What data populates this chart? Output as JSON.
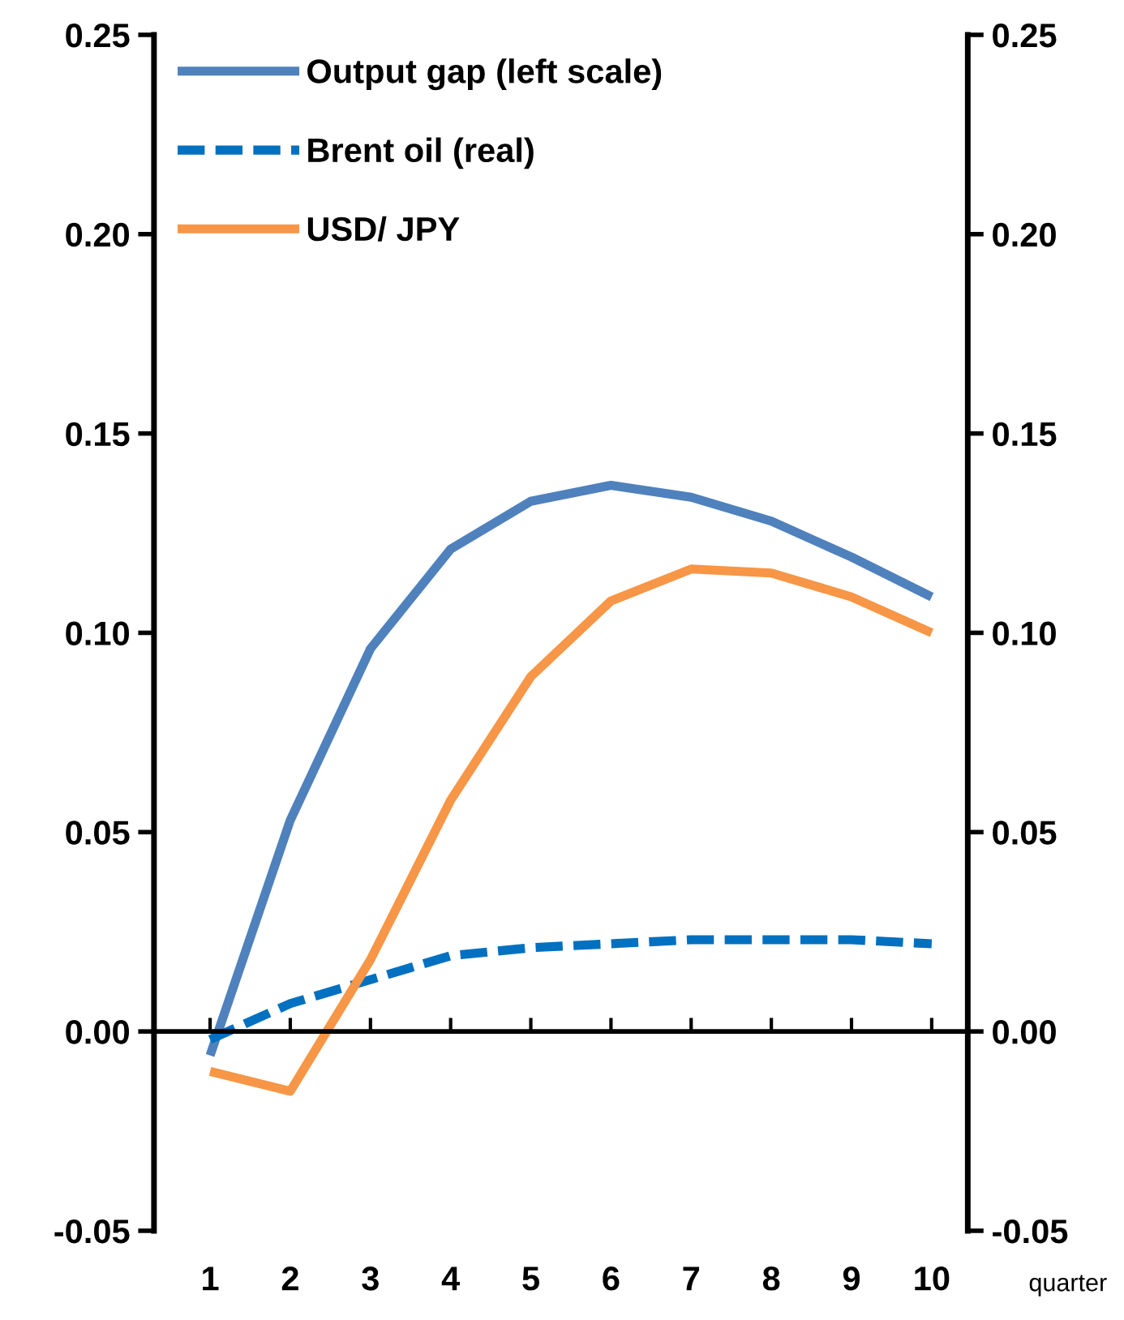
{
  "chart_data": {
    "type": "line",
    "xlabel": "quarter",
    "categories": [
      "1",
      "2",
      "3",
      "4",
      "5",
      "6",
      "7",
      "8",
      "9",
      "10"
    ],
    "series": [
      {
        "name": "Output gap (left scale)",
        "color": "#4f81bd",
        "line_style": "solid",
        "values": [
          -0.006,
          0.053,
          0.096,
          0.121,
          0.133,
          0.137,
          0.134,
          0.128,
          0.119,
          0.109
        ]
      },
      {
        "name": "Brent oil (real)",
        "color": "#0070c0",
        "line_style": "dashed",
        "values": [
          -0.002,
          0.007,
          0.013,
          0.019,
          0.021,
          0.022,
          0.023,
          0.023,
          0.023,
          0.022
        ]
      },
      {
        "name": "USD/ JPY",
        "color": "#f79646",
        "line_style": "solid",
        "values": [
          -0.01,
          -0.015,
          0.018,
          0.058,
          0.089,
          0.108,
          0.116,
          0.115,
          0.109,
          0.1
        ]
      }
    ],
    "ylim": [
      -0.05,
      0.25
    ],
    "yticks": [
      {
        "value": -0.05,
        "label": "-0.05"
      },
      {
        "value": 0,
        "label": "0.00"
      },
      {
        "value": 0.05,
        "label": "0.05"
      },
      {
        "value": 0.1,
        "label": "0.10"
      },
      {
        "value": 0.15,
        "label": "0.15"
      },
      {
        "value": 0.2,
        "label": "0.20"
      },
      {
        "value": 0.25,
        "label": "0.25"
      }
    ],
    "y2lim": [
      -0.05,
      0.25
    ],
    "y2ticks": [
      {
        "value": -0.05,
        "label": "-0.05"
      },
      {
        "value": 0,
        "label": "0.00"
      },
      {
        "value": 0.05,
        "label": "0.05"
      },
      {
        "value": 0.1,
        "label": "0.10"
      },
      {
        "value": 0.15,
        "label": "0.15"
      },
      {
        "value": 0.2,
        "label": "0.20"
      },
      {
        "value": 0.25,
        "label": "0.25"
      }
    ],
    "legend": "top left"
  }
}
